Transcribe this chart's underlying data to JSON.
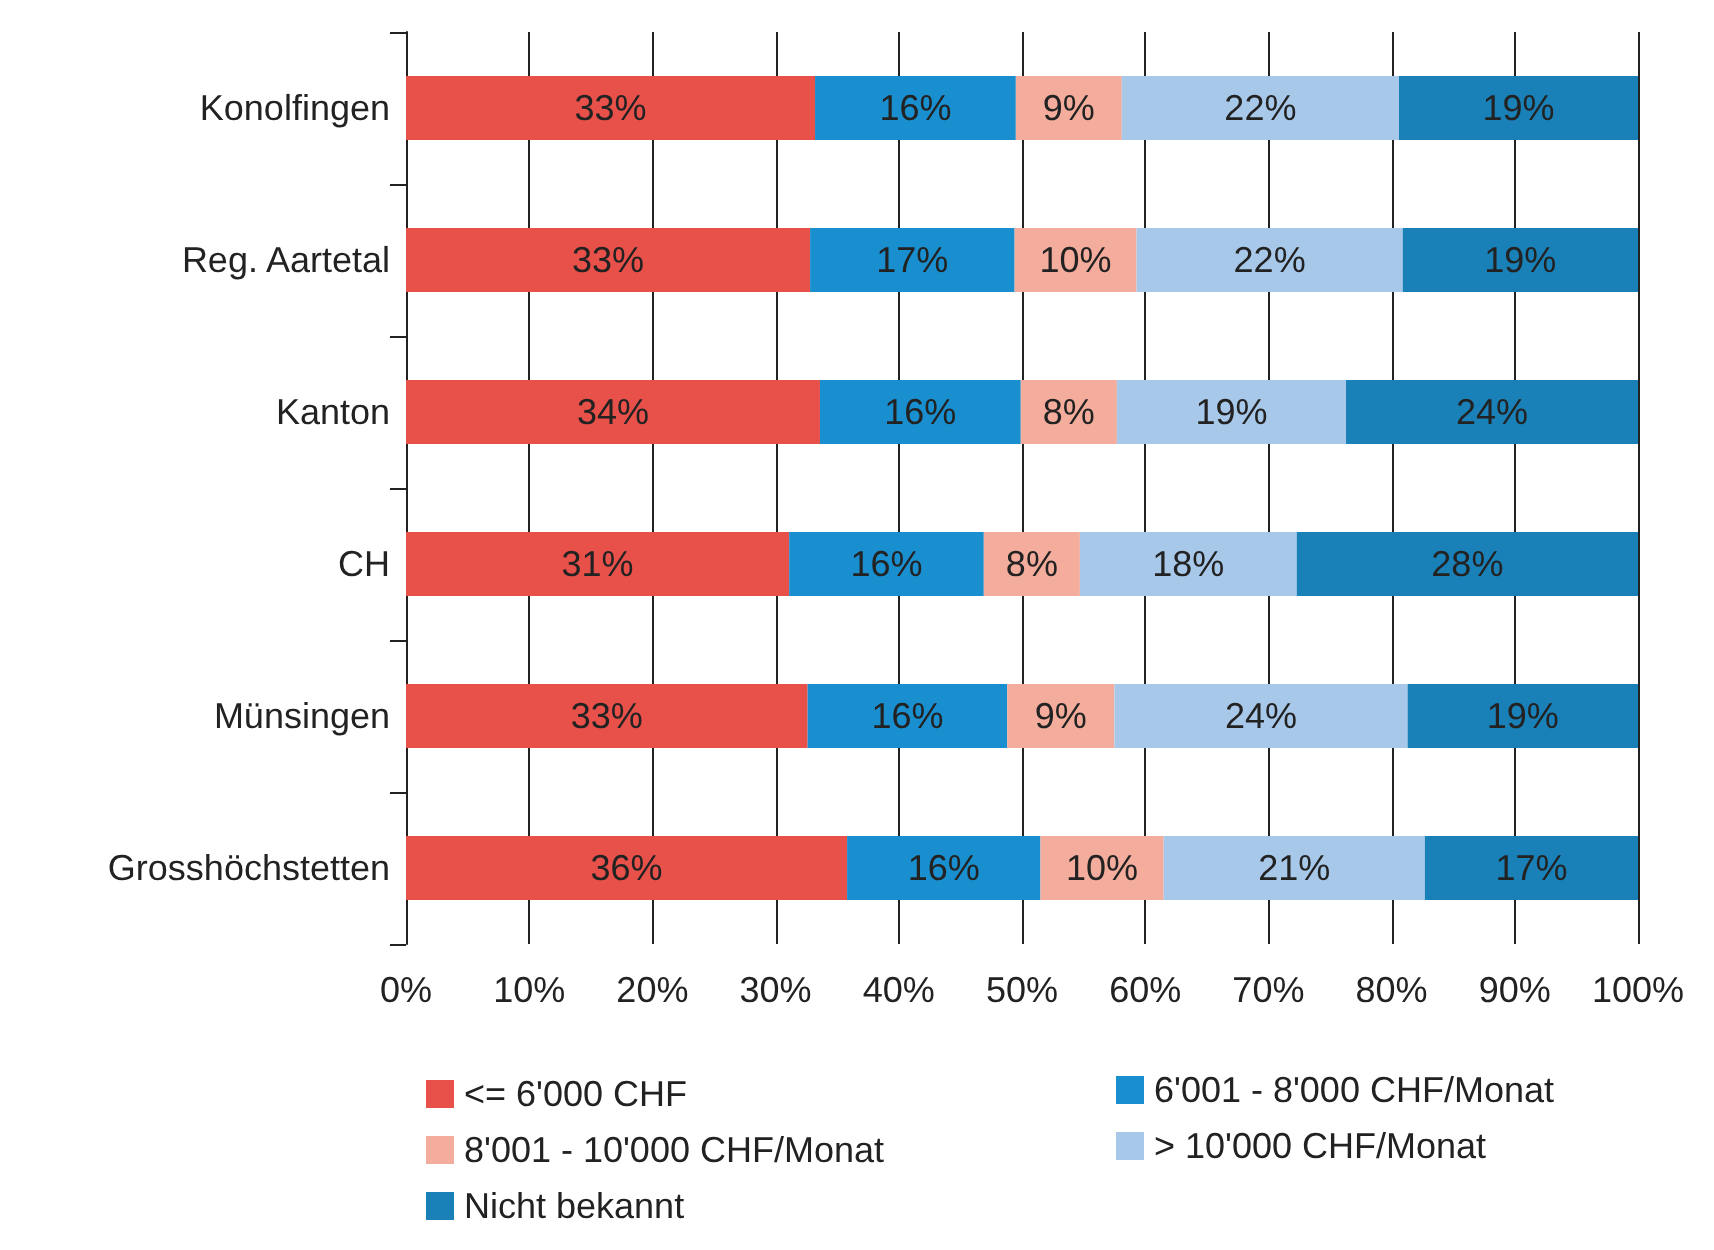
{
  "chart_data": {
    "type": "bar",
    "orientation": "horizontal",
    "stacked": true,
    "categories": [
      "Konolfingen",
      "Reg. Aartetal",
      "Kanton",
      "CH",
      "Münsingen",
      "Grosshöchstetten"
    ],
    "series": [
      {
        "name": "<= 6'000 CHF",
        "color": "#e8504a",
        "values": [
          33.2,
          32.8,
          33.6,
          31.1,
          32.6,
          35.8
        ],
        "value_labels": [
          "33%",
          "33%",
          "34%",
          "31%",
          "33%",
          "36%"
        ]
      },
      {
        "name": "6'001 - 8'000 CHF/Monat",
        "color": "#1a8fd0",
        "values": [
          16.3,
          16.6,
          16.3,
          15.8,
          16.2,
          15.7
        ],
        "value_labels": [
          "16%",
          "17%",
          "16%",
          "16%",
          "16%",
          "16%"
        ]
      },
      {
        "name": "8'001 - 10'000 CHF/Monat",
        "color": "#f4ad9c",
        "values": [
          8.6,
          9.9,
          7.8,
          7.8,
          8.7,
          10.0
        ],
        "value_labels": [
          "9%",
          "10%",
          "8%",
          "8%",
          "9%",
          "10%"
        ]
      },
      {
        "name": "> 10'000 CHF/Monat",
        "color": "#a8c8ea",
        "values": [
          22.5,
          21.6,
          18.6,
          17.6,
          23.8,
          21.2
        ],
        "value_labels": [
          "22%",
          "22%",
          "19%",
          "18%",
          "24%",
          "21%"
        ]
      },
      {
        "name": "Nicht bekannt",
        "color": "#1a80b8",
        "values": [
          19.4,
          19.1,
          23.7,
          27.7,
          18.7,
          17.3
        ],
        "value_labels": [
          "19%",
          "19%",
          "24%",
          "28%",
          "19%",
          "17%"
        ]
      }
    ],
    "xlim": [
      0,
      100
    ],
    "xticks": [
      {
        "value": 0,
        "label": "0%"
      },
      {
        "value": 10,
        "label": "10%"
      },
      {
        "value": 20,
        "label": "20%"
      },
      {
        "value": 30,
        "label": "30%"
      },
      {
        "value": 40,
        "label": "40%"
      },
      {
        "value": 50,
        "label": "50%"
      },
      {
        "value": 60,
        "label": "60%"
      },
      {
        "value": 70,
        "label": "70%"
      },
      {
        "value": 80,
        "label": "80%"
      },
      {
        "value": 90,
        "label": "90%"
      },
      {
        "value": 100,
        "label": "100%"
      }
    ],
    "grid": "x",
    "legend": "bottom"
  }
}
